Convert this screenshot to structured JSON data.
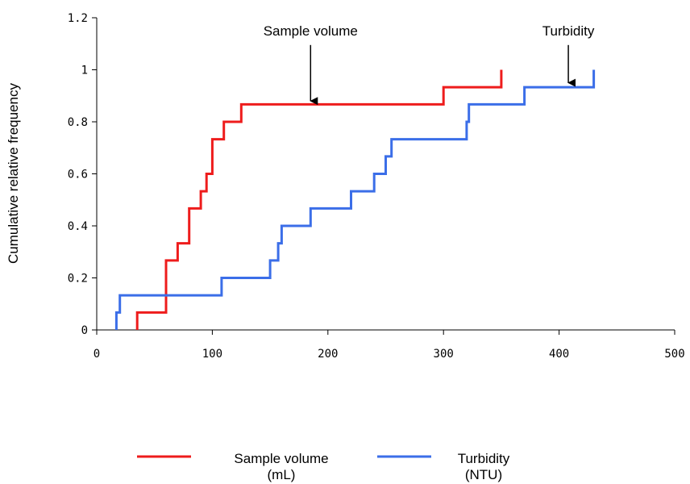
{
  "chart_data": {
    "type": "line",
    "step": true,
    "title": "",
    "xlabel": "",
    "ylabel": "Cumulative relative frequency",
    "xlim": [
      0,
      500
    ],
    "ylim": [
      0,
      1.2
    ],
    "x_ticks": [
      "0",
      "100",
      "200",
      "300",
      "400",
      "500"
    ],
    "y_ticks": [
      "0",
      "0.2",
      "0.4",
      "0.6",
      "0.8",
      "1",
      "1.2"
    ],
    "grid": false,
    "legend_position": "bottom",
    "series": [
      {
        "name": "Sample volume",
        "legend_label_line1": "Sample volume",
        "legend_label_line2": "(mL)",
        "color": "#ee1c1c",
        "points": [
          [
            35,
            0
          ],
          [
            35,
            0.067
          ],
          [
            60,
            0.067
          ],
          [
            60,
            0.267
          ],
          [
            70,
            0.267
          ],
          [
            70,
            0.333
          ],
          [
            80,
            0.333
          ],
          [
            80,
            0.467
          ],
          [
            90,
            0.467
          ],
          [
            90,
            0.533
          ],
          [
            95,
            0.533
          ],
          [
            95,
            0.6
          ],
          [
            100,
            0.6
          ],
          [
            100,
            0.733
          ],
          [
            110,
            0.733
          ],
          [
            110,
            0.8
          ],
          [
            125,
            0.8
          ],
          [
            125,
            0.867
          ],
          [
            300,
            0.867
          ],
          [
            300,
            0.933
          ],
          [
            350,
            0.933
          ],
          [
            350,
            1.0
          ]
        ]
      },
      {
        "name": "Turbidity",
        "legend_label_line1": "Turbidity",
        "legend_label_line2": "(NTU)",
        "color": "#3b6ee8",
        "points": [
          [
            17,
            0
          ],
          [
            17,
            0.067
          ],
          [
            20,
            0.067
          ],
          [
            20,
            0.133
          ],
          [
            108,
            0.133
          ],
          [
            108,
            0.2
          ],
          [
            150,
            0.2
          ],
          [
            150,
            0.267
          ],
          [
            157,
            0.267
          ],
          [
            157,
            0.333
          ],
          [
            160,
            0.333
          ],
          [
            160,
            0.4
          ],
          [
            185,
            0.4
          ],
          [
            185,
            0.467
          ],
          [
            220,
            0.467
          ],
          [
            220,
            0.533
          ],
          [
            240,
            0.533
          ],
          [
            240,
            0.6
          ],
          [
            250,
            0.6
          ],
          [
            250,
            0.667
          ],
          [
            255,
            0.667
          ],
          [
            255,
            0.733
          ],
          [
            320,
            0.733
          ],
          [
            320,
            0.8
          ],
          [
            322,
            0.8
          ],
          [
            322,
            0.867
          ],
          [
            370,
            0.867
          ],
          [
            370,
            0.933
          ],
          [
            430,
            0.933
          ],
          [
            430,
            1.0
          ]
        ]
      }
    ],
    "annotations": [
      {
        "text": "Sample volume",
        "x": 185,
        "y": 1.12,
        "arrow_to": [
          185,
          0.88
        ]
      },
      {
        "text": "Turbidity",
        "x": 408,
        "y": 1.12,
        "arrow_to": [
          408,
          0.95
        ]
      }
    ]
  }
}
